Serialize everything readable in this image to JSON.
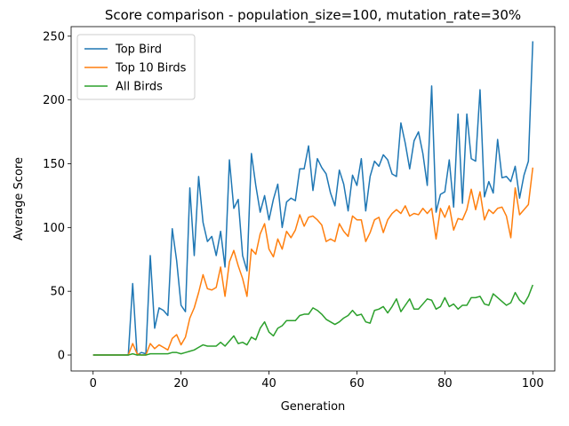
{
  "chart_data": {
    "type": "line",
    "title": "Score comparison - population_size=100, mutation_rate=30%",
    "xlabel": "Generation",
    "ylabel": "Average Score",
    "xlim": [
      -5,
      105
    ],
    "ylim": [
      -12.5,
      257.5
    ],
    "xticks": [
      0,
      20,
      40,
      60,
      80,
      100
    ],
    "yticks": [
      0,
      50,
      100,
      150,
      200,
      250
    ],
    "grid": false,
    "legend_position": "top-left",
    "x": [
      0,
      1,
      2,
      3,
      4,
      5,
      6,
      7,
      8,
      9,
      10,
      11,
      12,
      13,
      14,
      15,
      16,
      17,
      18,
      19,
      20,
      21,
      22,
      23,
      24,
      25,
      26,
      27,
      28,
      29,
      30,
      31,
      32,
      33,
      34,
      35,
      36,
      37,
      38,
      39,
      40,
      41,
      42,
      43,
      44,
      45,
      46,
      47,
      48,
      49,
      50,
      51,
      52,
      53,
      54,
      55,
      56,
      57,
      58,
      59,
      60,
      61,
      62,
      63,
      64,
      65,
      66,
      67,
      68,
      69,
      70,
      71,
      72,
      73,
      74,
      75,
      76,
      77,
      78,
      79,
      80,
      81,
      82,
      83,
      84,
      85,
      86,
      87,
      88,
      89,
      90,
      91,
      92,
      93,
      94,
      95,
      96,
      97,
      98,
      99,
      100
    ],
    "series": [
      {
        "name": "Top Bird",
        "color": "#1f77b4",
        "values": [
          0,
          0,
          0,
          0,
          0,
          0,
          0,
          0,
          0,
          56,
          0,
          2,
          1,
          78,
          21,
          37,
          35,
          31,
          99,
          74,
          39,
          34,
          131,
          78,
          140,
          104,
          89,
          93,
          78,
          97,
          69,
          153,
          115,
          122,
          78,
          66,
          158,
          133,
          112,
          125,
          106,
          122,
          134,
          100,
          120,
          123,
          121,
          146,
          146,
          164,
          129,
          154,
          147,
          142,
          127,
          117,
          145,
          134,
          113,
          141,
          133,
          154,
          113,
          140,
          152,
          148,
          157,
          153,
          142,
          140,
          182,
          166,
          146,
          168,
          175,
          158,
          133,
          211,
          112,
          126,
          128,
          153,
          116,
          189,
          119,
          189,
          154,
          152,
          208,
          124,
          136,
          127,
          169,
          139,
          140,
          136,
          148,
          123,
          141,
          152,
          246
        ]
      },
      {
        "name": "Top 10 Birds",
        "color": "#ff7f0e",
        "values": [
          0,
          0,
          0,
          0,
          0,
          0,
          0,
          0,
          0,
          9,
          1,
          0,
          0,
          9,
          5,
          8,
          6,
          4,
          13,
          16,
          8,
          14,
          29,
          37,
          49,
          63,
          52,
          51,
          53,
          69,
          46,
          73,
          82,
          70,
          60,
          46,
          83,
          79,
          95,
          103,
          83,
          77,
          91,
          83,
          97,
          92,
          98,
          110,
          101,
          108,
          109,
          106,
          102,
          89,
          91,
          89,
          103,
          97,
          93,
          109,
          106,
          106,
          89,
          96,
          106,
          108,
          96,
          106,
          111,
          114,
          111,
          117,
          109,
          111,
          110,
          115,
          111,
          115,
          91,
          115,
          108,
          117,
          98,
          107,
          106,
          114,
          130,
          114,
          128,
          106,
          114,
          111,
          115,
          116,
          109,
          92,
          131,
          110,
          114,
          118,
          147
        ]
      },
      {
        "name": "All Birds",
        "color": "#2ca02c",
        "values": [
          0,
          0,
          0,
          0,
          0,
          0,
          0,
          0,
          0,
          1,
          0,
          0,
          0,
          1,
          1,
          1,
          1,
          1,
          2,
          2,
          1,
          2,
          3,
          4,
          6,
          8,
          7,
          7,
          7,
          10,
          7,
          11,
          15,
          9,
          10,
          8,
          14,
          12,
          21,
          26,
          18,
          15,
          21,
          23,
          27,
          27,
          27,
          31,
          32,
          32,
          37,
          35,
          32,
          28,
          26,
          24,
          26,
          29,
          31,
          35,
          31,
          32,
          26,
          25,
          35,
          36,
          38,
          33,
          38,
          44,
          34,
          39,
          44,
          36,
          36,
          40,
          44,
          43,
          36,
          38,
          45,
          38,
          40,
          36,
          39,
          39,
          45,
          45,
          46,
          40,
          39,
          48,
          45,
          42,
          39,
          41,
          49,
          43,
          40,
          46,
          55
        ]
      }
    ]
  }
}
